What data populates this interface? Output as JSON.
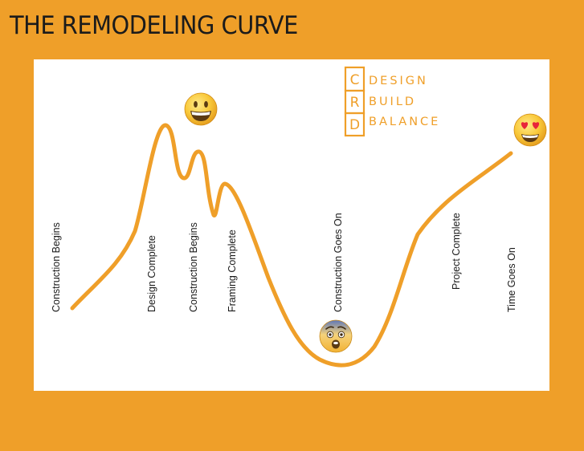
{
  "title": "THE REMODELING CURVE",
  "logo": {
    "letters": [
      "C",
      "R",
      "D"
    ],
    "words": [
      "DESIGN",
      "BUILD",
      "BALANCE"
    ]
  },
  "stages": [
    {
      "label": "Construction Begins"
    },
    {
      "label": "Design Complete"
    },
    {
      "label": "Construction Begins"
    },
    {
      "label": "Framing Complete"
    },
    {
      "label": "Construction Goes On"
    },
    {
      "label": "Project Complete"
    },
    {
      "label": "Time Goes On"
    }
  ],
  "emojis": [
    {
      "name": "grinning-face"
    },
    {
      "name": "anxious-face"
    },
    {
      "name": "heart-eyes-face"
    }
  ],
  "colors": {
    "background": "#EF9F29",
    "curve": "#EF9F29",
    "panel": "#FFFFFF",
    "text": "#1B1B1B"
  }
}
